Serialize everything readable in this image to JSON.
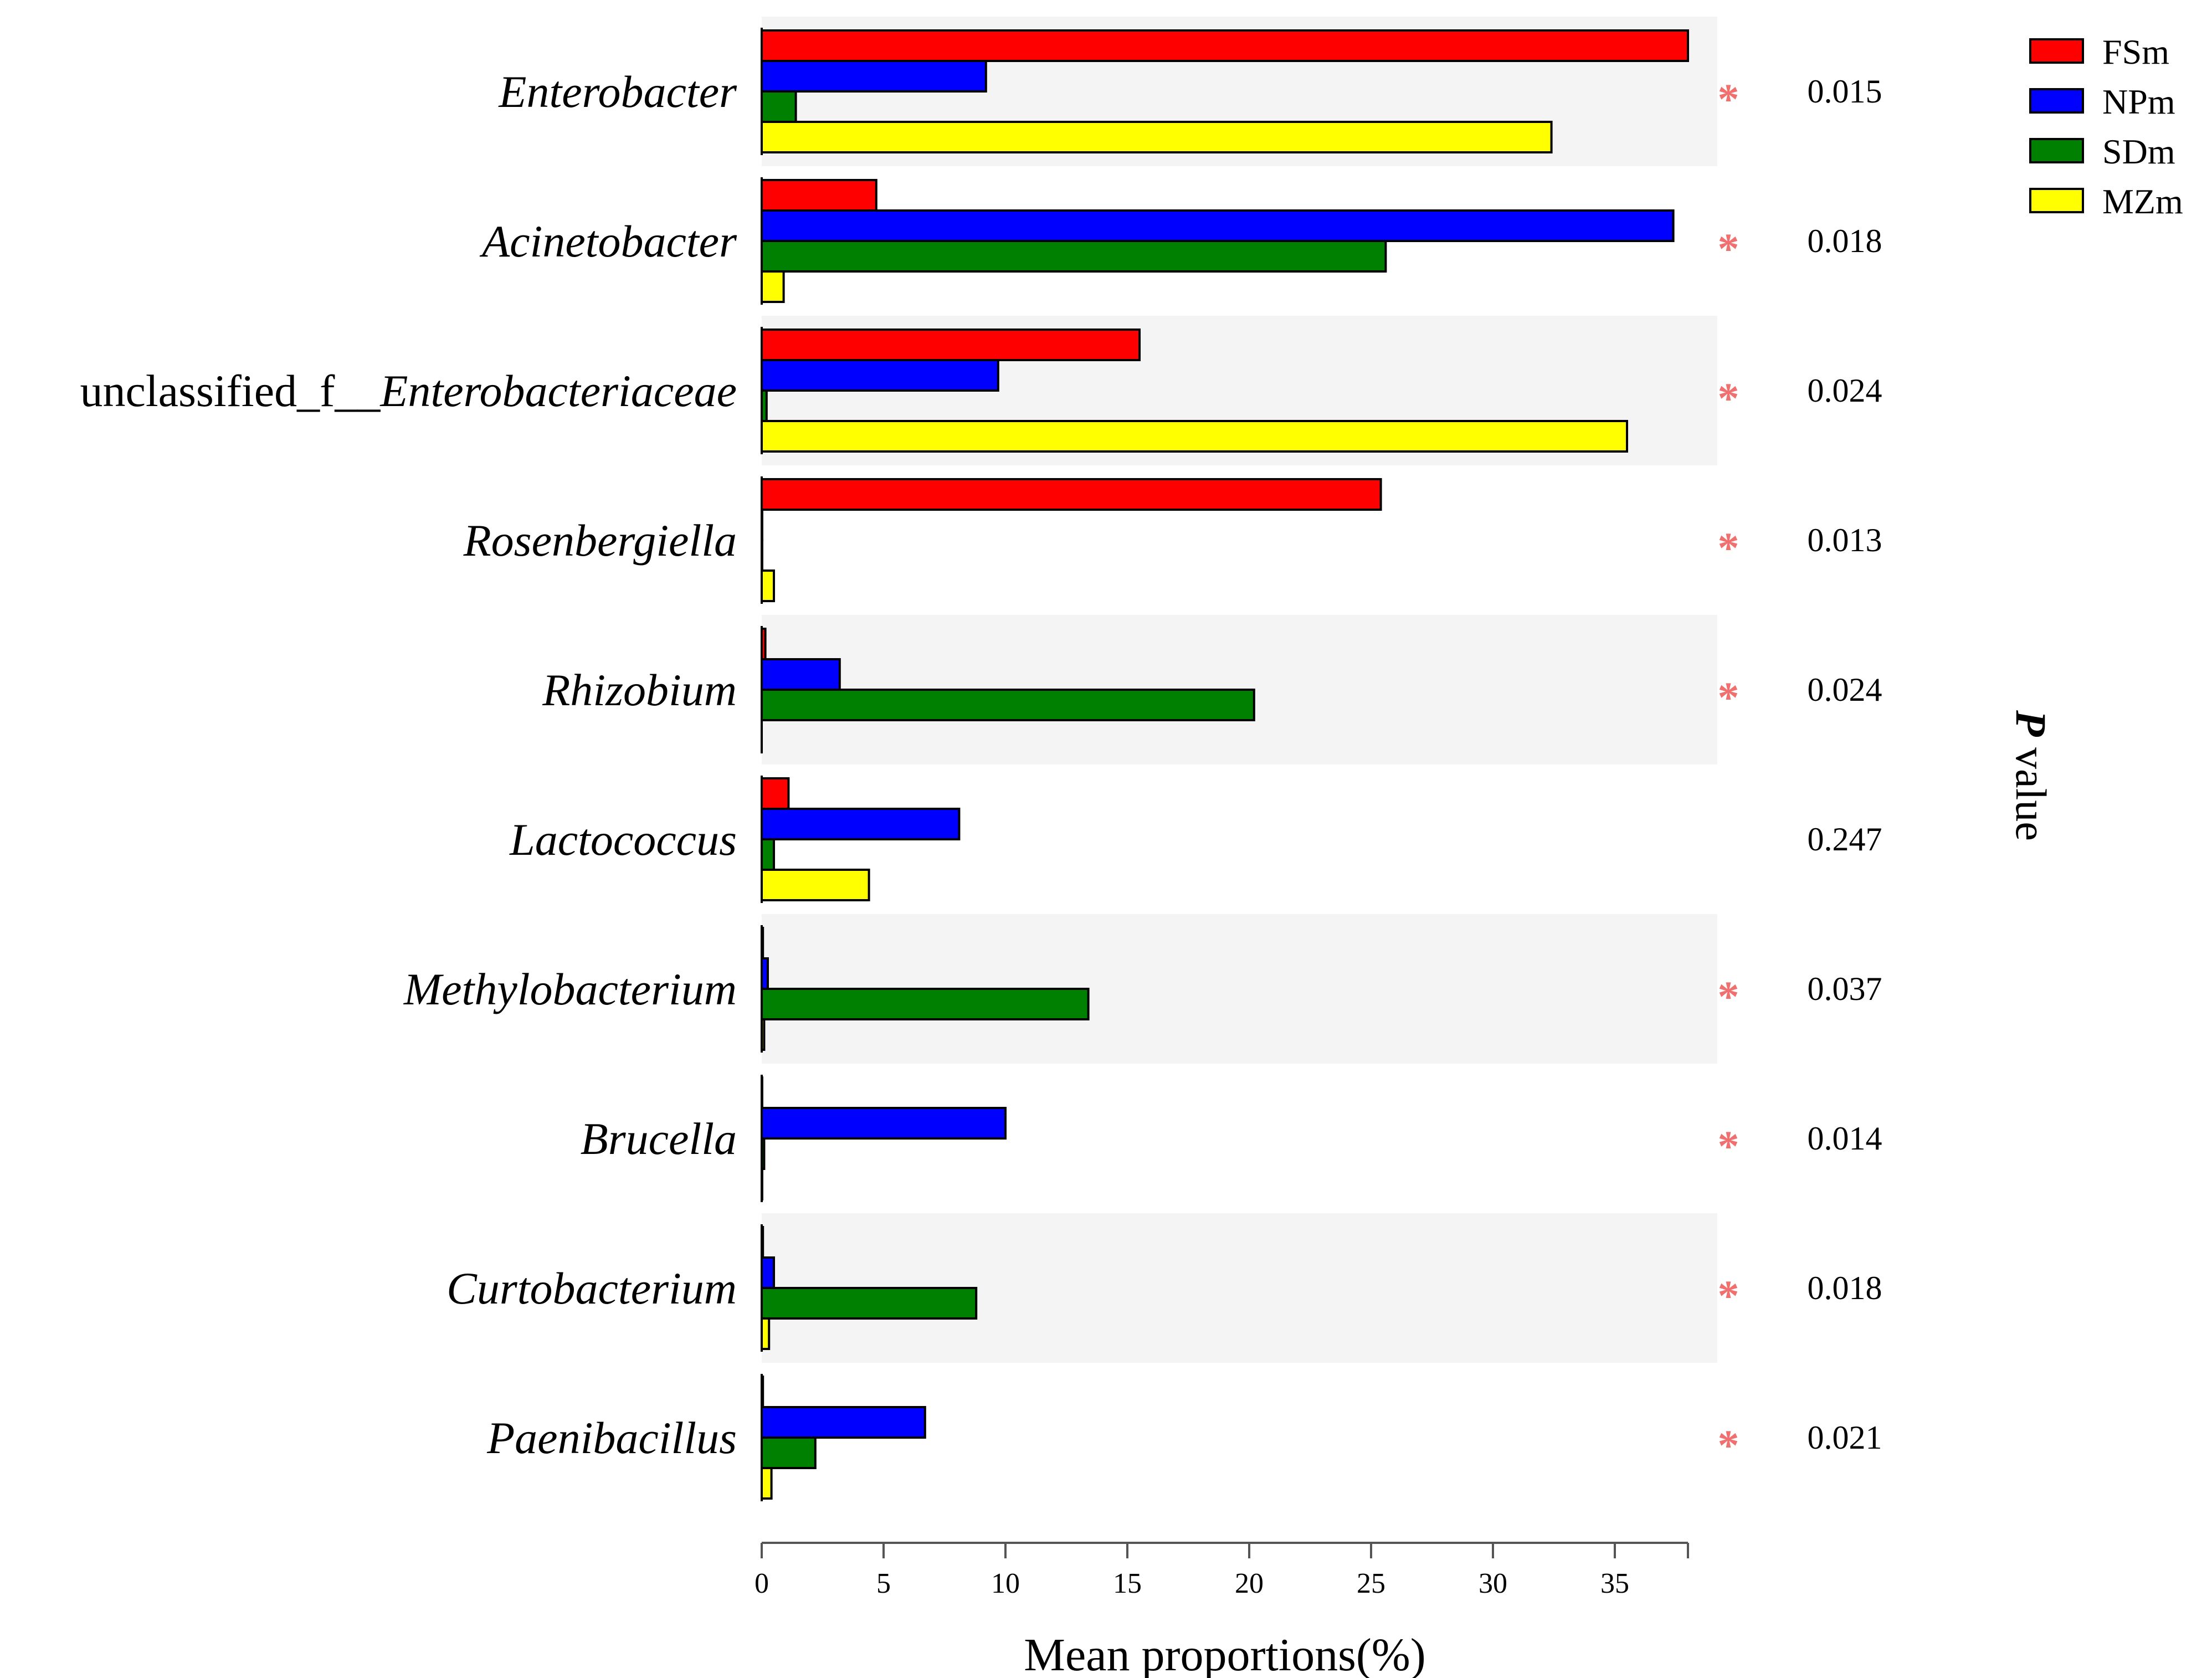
{
  "chart_data": {
    "type": "bar",
    "orientation": "horizontal",
    "title": "",
    "xlabel": "Mean proportions(%)",
    "ylabel": "",
    "xlim": [
      0,
      38
    ],
    "xticks": [
      0,
      5,
      10,
      15,
      20,
      25,
      30,
      35
    ],
    "categories": [
      {
        "prefix": "",
        "name": "Enterobacter"
      },
      {
        "prefix": "",
        "name": "Acinetobacter"
      },
      {
        "prefix": "unclassified_f__",
        "name": "Enterobacteriaceae"
      },
      {
        "prefix": "",
        "name": "Rosenbergiella"
      },
      {
        "prefix": "",
        "name": "Rhizobium"
      },
      {
        "prefix": "",
        "name": "Lactococcus"
      },
      {
        "prefix": "",
        "name": "Methylobacterium"
      },
      {
        "prefix": "",
        "name": "Brucella"
      },
      {
        "prefix": "",
        "name": "Curtobacterium"
      },
      {
        "prefix": "",
        "name": "Paenibacillus"
      }
    ],
    "series": [
      {
        "name": "FSm",
        "color": "#ff0000",
        "values": [
          38.0,
          4.7,
          15.5,
          25.4,
          0.15,
          1.1,
          0.05,
          0.02,
          0.05,
          0.05
        ]
      },
      {
        "name": "NPm",
        "color": "#0000ff",
        "values": [
          9.2,
          37.4,
          9.7,
          0.02,
          3.2,
          8.1,
          0.25,
          10.0,
          0.5,
          6.7
        ]
      },
      {
        "name": "SDm",
        "color": "#008000",
        "values": [
          1.4,
          25.6,
          0.2,
          0.02,
          20.2,
          0.5,
          13.4,
          0.1,
          8.8,
          2.2
        ]
      },
      {
        "name": "MZm",
        "color": "#ffff00",
        "values": [
          32.4,
          0.9,
          35.5,
          0.5,
          0.0,
          4.4,
          0.1,
          0.02,
          0.3,
          0.4
        ]
      }
    ],
    "p_values": [
      "0.015",
      "0.018",
      "0.024",
      "0.013",
      "0.024",
      "0.247",
      "0.037",
      "0.014",
      "0.018",
      "0.021"
    ],
    "significant": [
      true,
      true,
      true,
      true,
      true,
      false,
      true,
      true,
      true,
      true
    ],
    "significance_marker": "*",
    "p_axis_title": {
      "italic": "P",
      "rest": " value"
    },
    "legend_position": "top-right",
    "grid": false,
    "alternating_band_color": "#f4f4f4"
  }
}
